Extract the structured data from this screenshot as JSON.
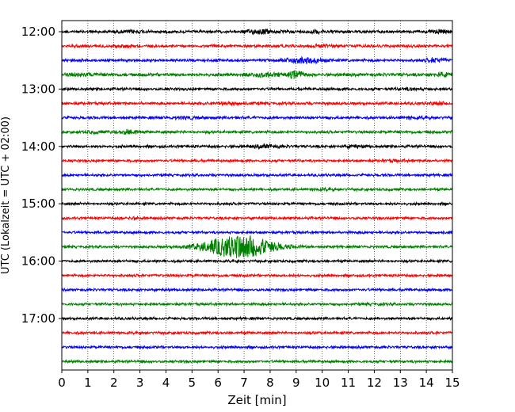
{
  "chart_data": {
    "type": "line",
    "title": "",
    "xlabel": "Zeit  [min]",
    "ylabel": "UTC (Lokalzeit = UTC + 02:00)",
    "xlim": [
      0,
      15
    ],
    "x_ticks": [
      "0",
      "1",
      "2",
      "3",
      "4",
      "5",
      "6",
      "7",
      "8",
      "9",
      "10",
      "11",
      "12",
      "13",
      "14",
      "15"
    ],
    "y_ticks": [
      "12:00",
      "13:00",
      "14:00",
      "15:00",
      "16:00",
      "17:00"
    ],
    "grid": "vertical-dotted",
    "trace_interval_min": 15,
    "trace_colors": [
      "#000000",
      "#ff0000",
      "#0000ff",
      "#008000"
    ],
    "series": [
      {
        "start": "12:00",
        "amplitude": 1.0,
        "bursts": [
          [
            2.8,
            0.5,
            1.5
          ],
          [
            7.6,
            0.6,
            2.0
          ],
          [
            9.8,
            0.5,
            1.6
          ],
          [
            14.5,
            0.4,
            1.8
          ]
        ]
      },
      {
        "start": "12:15",
        "amplitude": 1.0,
        "bursts": [
          [
            2.5,
            0.5,
            1.4
          ],
          [
            10.0,
            0.5,
            1.5
          ]
        ]
      },
      {
        "start": "12:30",
        "amplitude": 1.0,
        "bursts": [
          [
            9.3,
            0.7,
            2.5
          ],
          [
            14.4,
            0.4,
            2.0
          ]
        ]
      },
      {
        "start": "12:45",
        "amplitude": 1.2,
        "bursts": [
          [
            0.8,
            0.6,
            1.5
          ],
          [
            7.8,
            0.6,
            1.8
          ],
          [
            9.0,
            0.3,
            3.0
          ],
          [
            14.6,
            0.4,
            1.8
          ]
        ]
      },
      {
        "start": "13:00",
        "amplitude": 1.0,
        "bursts": [
          [
            13.5,
            0.5,
            1.3
          ]
        ]
      },
      {
        "start": "13:15",
        "amplitude": 1.0,
        "bursts": [
          [
            6.5,
            0.8,
            1.5
          ],
          [
            14.5,
            0.4,
            1.5
          ]
        ]
      },
      {
        "start": "13:30",
        "amplitude": 1.0,
        "bursts": [
          [
            4.8,
            0.5,
            1.4
          ],
          [
            13.5,
            0.5,
            1.3
          ]
        ]
      },
      {
        "start": "13:45",
        "amplitude": 1.0,
        "bursts": [
          [
            1.3,
            0.4,
            1.5
          ],
          [
            2.6,
            0.3,
            2.2
          ]
        ]
      },
      {
        "start": "14:00",
        "amplitude": 1.0,
        "bursts": [
          [
            7.9,
            0.5,
            1.8
          ],
          [
            11.3,
            0.5,
            1.5
          ]
        ]
      },
      {
        "start": "14:15",
        "amplitude": 0.9,
        "bursts": [
          [
            12.8,
            0.6,
            1.3
          ]
        ]
      },
      {
        "start": "14:30",
        "amplitude": 0.9,
        "bursts": []
      },
      {
        "start": "14:45",
        "amplitude": 0.9,
        "bursts": [
          [
            10.1,
            0.5,
            1.3
          ]
        ]
      },
      {
        "start": "15:00",
        "amplitude": 0.9,
        "bursts": []
      },
      {
        "start": "15:15",
        "amplitude": 0.9,
        "bursts": [
          [
            2.7,
            0.3,
            1.4
          ]
        ]
      },
      {
        "start": "15:30",
        "amplitude": 0.9,
        "bursts": [
          [
            14.8,
            0.3,
            1.3
          ]
        ]
      },
      {
        "start": "15:45",
        "amplitude": 0.9,
        "bursts": [
          [
            6.8,
            1.3,
            8.0
          ]
        ]
      },
      {
        "start": "16:00",
        "amplitude": 0.9,
        "bursts": []
      },
      {
        "start": "16:15",
        "amplitude": 0.9,
        "bursts": []
      },
      {
        "start": "16:30",
        "amplitude": 0.9,
        "bursts": []
      },
      {
        "start": "16:45",
        "amplitude": 0.9,
        "bursts": [
          [
            12.0,
            0.5,
            1.2
          ]
        ]
      },
      {
        "start": "17:00",
        "amplitude": 0.9,
        "bursts": []
      },
      {
        "start": "17:15",
        "amplitude": 0.9,
        "bursts": []
      },
      {
        "start": "17:30",
        "amplitude": 0.9,
        "bursts": []
      },
      {
        "start": "17:45",
        "amplitude": 0.9,
        "bursts": []
      }
    ]
  }
}
